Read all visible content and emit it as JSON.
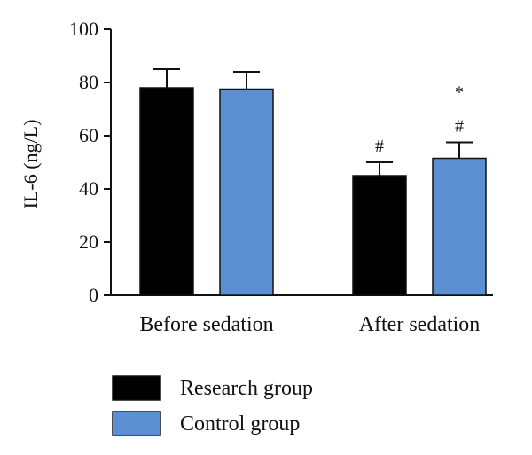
{
  "chart_data": {
    "type": "bar",
    "title": "",
    "xlabel": "",
    "ylabel": "IL-6 (ng/L)",
    "ylim": [
      0,
      100
    ],
    "yticks": [
      "0",
      "20",
      "40",
      "60",
      "80",
      "100"
    ],
    "categories": [
      "Before sedation",
      "After sedation"
    ],
    "series": [
      {
        "name": "Research group",
        "color": "#000000",
        "values": [
          78,
          45
        ],
        "errors": [
          7,
          5
        ],
        "annotations": [
          "",
          "#"
        ]
      },
      {
        "name": "Control group",
        "color": "#5b8fd0",
        "values": [
          77.5,
          51.5
        ],
        "errors": [
          6.5,
          6
        ],
        "annotations": [
          "",
          "*\n#"
        ]
      }
    ],
    "grid": false,
    "legend_position": "bottom-left"
  }
}
